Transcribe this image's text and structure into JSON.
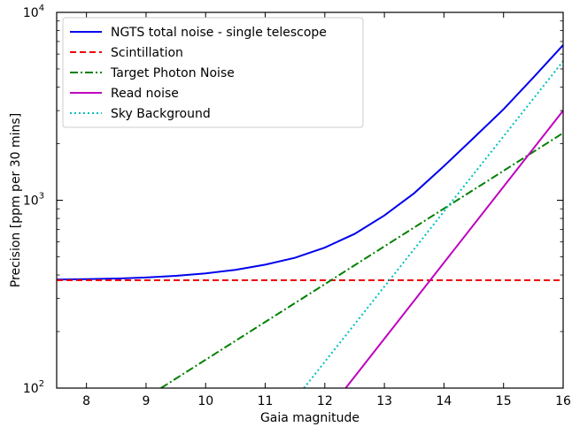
{
  "chart_data": {
    "type": "line",
    "title": "",
    "xlabel": "Gaia magnitude",
    "ylabel": "Precision [ppm per 30 mins]",
    "xlim": [
      7.5,
      16
    ],
    "ylim": [
      100,
      10000
    ],
    "yscale": "log",
    "grid": false,
    "legend_position": "top-left",
    "x_ticks": [
      8,
      9,
      10,
      11,
      12,
      13,
      14,
      15,
      16
    ],
    "x_tick_labels": [
      "8",
      "9",
      "10",
      "11",
      "12",
      "13",
      "14",
      "15",
      "16"
    ],
    "y_ticks": [
      100,
      1000,
      10000
    ],
    "y_tick_labels": [
      {
        "base": "10",
        "exp": "2"
      },
      {
        "base": "10",
        "exp": "3"
      },
      {
        "base": "10",
        "exp": "4"
      }
    ],
    "series": [
      {
        "name": "NGTS total noise - single telescope",
        "color": "#0000ee",
        "style": "solid",
        "x": [
          7.5,
          8,
          8.5,
          9,
          9.5,
          10,
          10.5,
          11,
          11.5,
          12,
          12.5,
          13,
          13.5,
          14,
          14.5,
          15,
          15.5,
          16
        ],
        "y": [
          378,
          380,
          383,
          388,
          396,
          408,
          426,
          454,
          494,
          560,
          662,
          830,
          1090,
          1520,
          2150,
          3050,
          4500,
          6700
        ]
      },
      {
        "name": "Scintillation",
        "color": "#ee0000",
        "style": "dashed",
        "x": [
          7.5,
          16
        ],
        "y": [
          375,
          375
        ]
      },
      {
        "name": "Target Photon Noise",
        "color": "#008000",
        "style": "dashdot",
        "x": [
          9.25,
          16
        ],
        "y": [
          100,
          2280
        ]
      },
      {
        "name": "Read noise",
        "color": "#bf00bf",
        "style": "solid",
        "x": [
          12.35,
          16
        ],
        "y": [
          100,
          3000
        ]
      },
      {
        "name": "Sky Background",
        "color": "#00bfbf",
        "style": "dotted",
        "x": [
          11.65,
          16
        ],
        "y": [
          100,
          5500
        ]
      }
    ]
  }
}
